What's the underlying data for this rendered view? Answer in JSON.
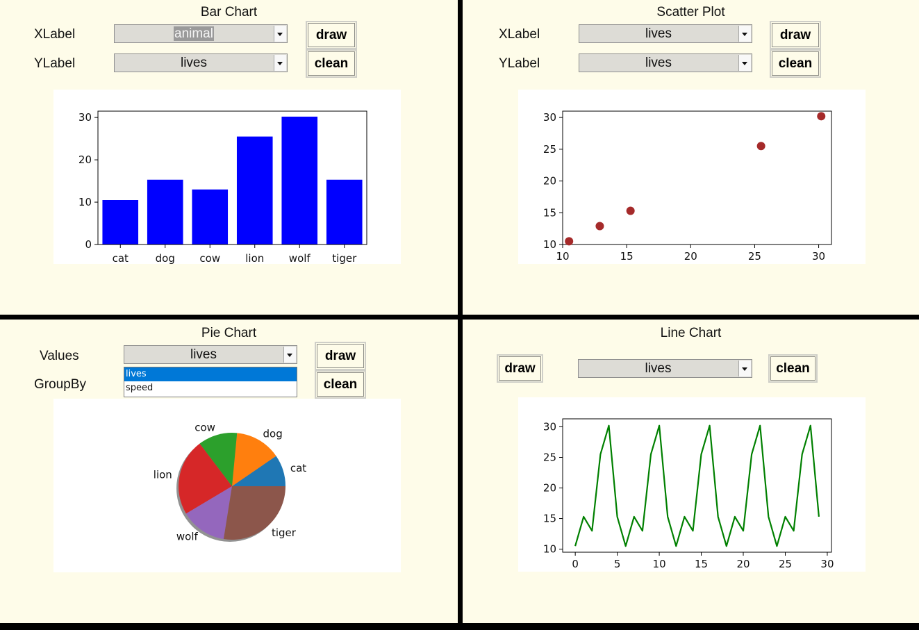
{
  "bar_panel": {
    "title": "Bar Chart",
    "xlabel_label": "XLabel",
    "ylabel_label": "YLabel",
    "x_value": "animal",
    "y_value": "lives",
    "draw_label": "draw",
    "clean_label": "clean"
  },
  "scatter_panel": {
    "title": "Scatter Plot",
    "xlabel_label": "XLabel",
    "ylabel_label": "YLabel",
    "x_value": "lives",
    "y_value": "lives",
    "draw_label": "draw",
    "clean_label": "clean"
  },
  "pie_panel": {
    "title": "Pie Chart",
    "values_label": "Values",
    "groupby_label": "GroupBy",
    "values_value": "lives",
    "dropdown_options": [
      "lives",
      "speed"
    ],
    "dropdown_selected": "lives",
    "draw_label": "draw",
    "clean_label": "clean"
  },
  "line_panel": {
    "title": "Line Chart",
    "value": "lives",
    "draw_label": "draw",
    "clean_label": "clean"
  },
  "chart_data": [
    {
      "type": "bar",
      "categories": [
        "cat",
        "dog",
        "cow",
        "lion",
        "wolf",
        "tiger"
      ],
      "values": [
        10.5,
        15.3,
        13,
        25.5,
        30.2,
        15.3
      ],
      "ylim": [
        0,
        31.5
      ],
      "yticks": [
        0,
        10,
        20,
        30
      ],
      "color": "#0000ff"
    },
    {
      "type": "scatter",
      "x": [
        10.5,
        12.9,
        15.3,
        25.5,
        30.2
      ],
      "y": [
        10.5,
        12.9,
        15.3,
        25.5,
        30.2
      ],
      "xlim": [
        10,
        31
      ],
      "ylim": [
        10,
        31
      ],
      "xticks": [
        10,
        15,
        20,
        25,
        30
      ],
      "yticks": [
        10,
        15,
        20,
        25,
        30
      ],
      "color": "#a52a2a"
    },
    {
      "type": "pie",
      "labels": [
        "cat",
        "dog",
        "cow",
        "lion",
        "wolf",
        "tiger"
      ],
      "values": [
        10.5,
        15.3,
        13,
        25.5,
        15.3,
        30.2
      ],
      "colors": [
        "#1f77b4",
        "#ff7f0e",
        "#2ca02c",
        "#d62728",
        "#9467bd",
        "#8c564b"
      ],
      "shadow": true
    },
    {
      "type": "line",
      "x": [
        0,
        1,
        2,
        3,
        4,
        5,
        6,
        7,
        8,
        9,
        10,
        11,
        12,
        13,
        14,
        15,
        16,
        17,
        18,
        19,
        20,
        21,
        22,
        23,
        24,
        25,
        26,
        27,
        28,
        29
      ],
      "y": [
        10.5,
        15.3,
        13,
        25.5,
        30.2,
        15.3,
        10.5,
        15.3,
        13,
        25.5,
        30.2,
        15.3,
        10.5,
        15.3,
        13,
        25.5,
        30.2,
        15.3,
        10.5,
        15.3,
        13,
        25.5,
        30.2,
        15.3,
        10.5,
        15.3,
        13,
        25.5,
        30.2,
        15.3
      ],
      "xlim": [
        -1.5,
        30.5
      ],
      "ylim": [
        9.5,
        31.3
      ],
      "xticks": [
        0,
        5,
        10,
        15,
        20,
        25,
        30
      ],
      "yticks": [
        10,
        15,
        20,
        25,
        30
      ],
      "color": "#008000"
    }
  ]
}
